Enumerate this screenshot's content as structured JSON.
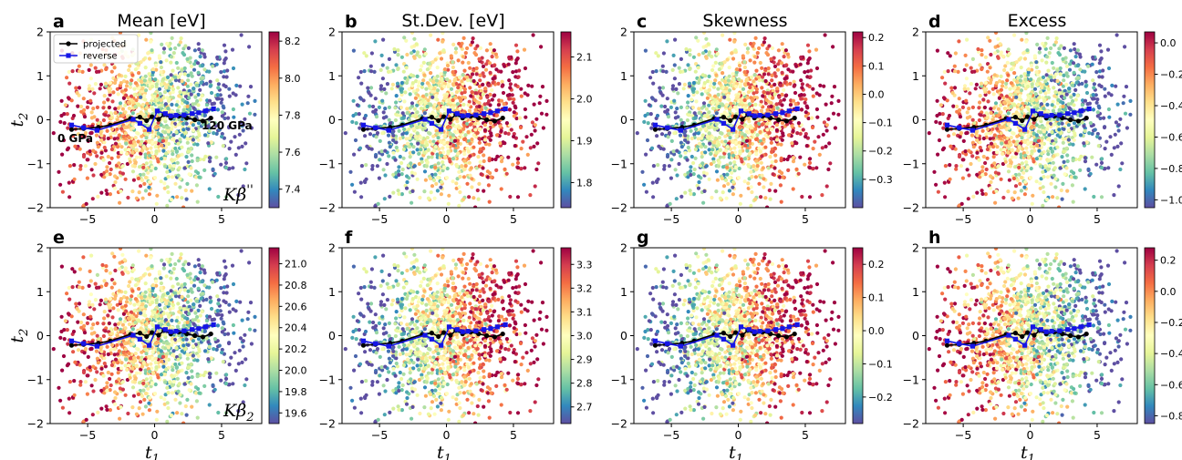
{
  "figure": {
    "column_titles": [
      "Mean [eV]",
      "St.Dev. [eV]",
      "Skewness",
      "Excess"
    ],
    "row_labels": [
      "Kβ''",
      "Kβ₂"
    ],
    "xlabel": "t₁",
    "ylabel": "t₂",
    "annotations": [
      "0 GPa",
      "120 GPa"
    ],
    "legend": [
      "projected",
      "reverse"
    ],
    "colormap": "Spectral_r",
    "colors": {
      "projected": "#000000",
      "reverse": "#1515e6"
    }
  },
  "chart_data": [
    {
      "panel": "a",
      "type": "scatter",
      "title": "Mean [eV]",
      "ylabel": "t₂",
      "row_label": "Kβ''",
      "xlim": [
        -7.8,
        8
      ],
      "ylim": [
        -2,
        2
      ],
      "xticks": [
        -5,
        0,
        5
      ],
      "yticks": [
        -2,
        -1,
        0,
        1,
        2
      ],
      "pattern": "left_high",
      "colorbar": {
        "ticks": [
          "8.2",
          "8.0",
          "7.8",
          "7.6",
          "7.4"
        ],
        "vmin": 7.3,
        "vmax": 8.25,
        "tick_values": [
          8.2,
          8.0,
          7.8,
          7.6,
          7.4
        ]
      },
      "annotations": [
        "0 GPa",
        "120 GPa"
      ],
      "legend": [
        "projected",
        "reverse"
      ]
    },
    {
      "panel": "b",
      "type": "scatter",
      "title": "St.Dev. [eV]",
      "xlim": [
        -7.8,
        8
      ],
      "ylim": [
        -2,
        2
      ],
      "xticks": [
        -5,
        0,
        5
      ],
      "yticks": [
        -2,
        -1,
        0,
        1,
        2
      ],
      "pattern": "right_high",
      "colorbar": {
        "ticks": [
          "2.1",
          "2.0",
          "1.9",
          "1.8"
        ],
        "vmin": 1.74,
        "vmax": 2.16,
        "tick_values": [
          2.1,
          2.0,
          1.9,
          1.8
        ]
      }
    },
    {
      "panel": "c",
      "type": "scatter",
      "title": "Skewness",
      "xlim": [
        -7.8,
        8
      ],
      "ylim": [
        -2,
        2
      ],
      "xticks": [
        -5,
        0,
        5
      ],
      "yticks": [
        -2,
        -1,
        0,
        1,
        2
      ],
      "pattern": "right_high",
      "colorbar": {
        "ticks": [
          "0.2",
          "0.1",
          "0.0",
          "−0.1",
          "−0.2",
          "−0.3"
        ],
        "vmin": -0.4,
        "vmax": 0.22,
        "tick_values": [
          0.2,
          0.1,
          0.0,
          -0.1,
          -0.2,
          -0.3
        ]
      }
    },
    {
      "panel": "d",
      "type": "scatter",
      "title": "Excess",
      "xlim": [
        -7.8,
        8
      ],
      "ylim": [
        -2,
        2
      ],
      "xticks": [
        -5,
        0,
        5
      ],
      "yticks": [
        -2,
        -1,
        0,
        1,
        2
      ],
      "pattern": "left_high",
      "colorbar": {
        "ticks": [
          "0.0",
          "−0.2",
          "−0.4",
          "−0.6",
          "−0.8",
          "−1.0"
        ],
        "vmin": -1.05,
        "vmax": 0.07,
        "tick_values": [
          0.0,
          -0.2,
          -0.4,
          -0.6,
          -0.8,
          -1.0
        ]
      }
    },
    {
      "panel": "e",
      "type": "scatter",
      "xlabel": "t₁",
      "ylabel": "t₂",
      "row_label": "Kβ₂",
      "xlim": [
        -7.8,
        8
      ],
      "ylim": [
        -2,
        2
      ],
      "xticks": [
        -5,
        0,
        5
      ],
      "yticks": [
        -2,
        -1,
        0,
        1,
        2
      ],
      "pattern": "left_high",
      "colorbar": {
        "ticks": [
          "21.0",
          "20.8",
          "20.6",
          "20.4",
          "20.2",
          "20.0",
          "19.8",
          "19.6"
        ],
        "vmin": 19.5,
        "vmax": 21.15,
        "tick_values": [
          21.0,
          20.8,
          20.6,
          20.4,
          20.2,
          20.0,
          19.8,
          19.6
        ]
      }
    },
    {
      "panel": "f",
      "type": "scatter",
      "xlabel": "t₁",
      "xlim": [
        -7.8,
        8
      ],
      "ylim": [
        -2,
        2
      ],
      "xticks": [
        -5,
        0,
        5
      ],
      "yticks": [
        -2,
        -1,
        0,
        1,
        2
      ],
      "pattern": "right_high",
      "colorbar": {
        "ticks": [
          "3.3",
          "3.2",
          "3.1",
          "3.0",
          "2.9",
          "2.8",
          "2.7"
        ],
        "vmin": 2.63,
        "vmax": 3.37,
        "tick_values": [
          3.3,
          3.2,
          3.1,
          3.0,
          2.9,
          2.8,
          2.7
        ]
      }
    },
    {
      "panel": "g",
      "type": "scatter",
      "xlabel": "t₁",
      "xlim": [
        -7.8,
        8
      ],
      "ylim": [
        -2,
        2
      ],
      "xticks": [
        -5,
        0,
        5
      ],
      "yticks": [
        -2,
        -1,
        0,
        1,
        2
      ],
      "pattern": "right_high",
      "colorbar": {
        "ticks": [
          "0.2",
          "0.1",
          "0.0",
          "−0.1",
          "−0.2"
        ],
        "vmin": -0.28,
        "vmax": 0.25,
        "tick_values": [
          0.2,
          0.1,
          0.0,
          -0.1,
          -0.2
        ]
      }
    },
    {
      "panel": "h",
      "type": "scatter",
      "xlabel": "t₁",
      "xlim": [
        -7.8,
        8
      ],
      "ylim": [
        -2,
        2
      ],
      "xticks": [
        -5,
        0,
        5
      ],
      "yticks": [
        -2,
        -1,
        0,
        1,
        2
      ],
      "pattern": "left_high",
      "colorbar": {
        "ticks": [
          "0.2",
          "0.0",
          "−0.2",
          "−0.4",
          "−0.6",
          "−0.8"
        ],
        "vmin": -0.85,
        "vmax": 0.28,
        "tick_values": [
          0.2,
          0.0,
          -0.2,
          -0.4,
          -0.6,
          -0.8
        ]
      }
    }
  ],
  "lines": {
    "projected": {
      "x": [
        -6.2,
        -5.3,
        -4.2,
        -3.3,
        -1.8,
        -1.1,
        -0.6,
        -0.2,
        0.3,
        0.7,
        1.2,
        1.8,
        2.4,
        3.0,
        3.6,
        4.2
      ],
      "y": [
        -0.22,
        -0.2,
        -0.17,
        -0.12,
        0.03,
        0.06,
        -0.02,
        0.07,
        0.01,
        0.12,
        0.04,
        0.08,
        0.04,
        0.0,
        -0.03,
        0.04
      ]
    },
    "reverse": {
      "x": [
        -6.2,
        -5.3,
        -4.3,
        -1.6,
        -1.1,
        -0.4,
        0.2,
        0.8,
        1.2,
        1.6,
        2.2,
        2.8,
        3.3,
        3.8,
        4.4
      ],
      "y": [
        -0.12,
        -0.18,
        -0.24,
        0.01,
        -0.08,
        -0.22,
        0.2,
        0.14,
        0.09,
        0.1,
        0.11,
        0.14,
        0.16,
        0.2,
        0.25
      ]
    }
  }
}
